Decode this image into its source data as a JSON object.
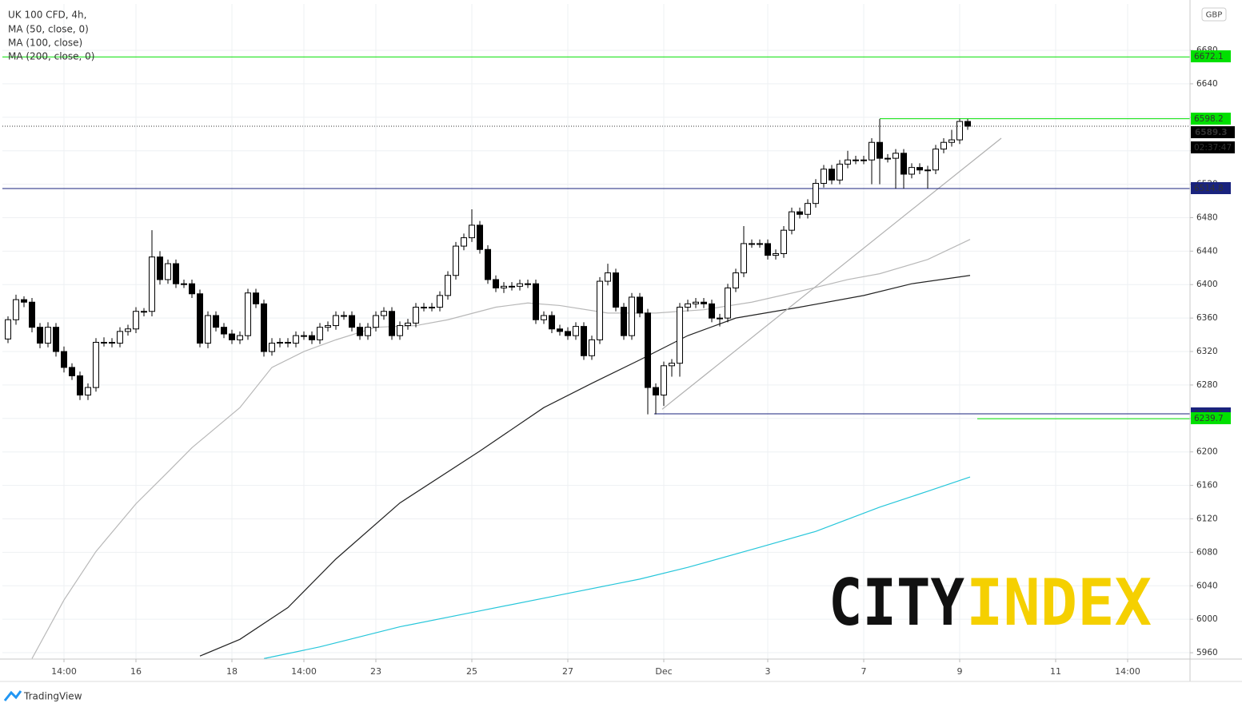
{
  "chart_data": {
    "type": "candlestick",
    "title": "UK 100 CFD, 4h,",
    "currency": "GBP",
    "up_color": "#ffffff",
    "down_color": "#000000",
    "grid": true,
    "xlim": [
      -0.7,
      147.8
    ],
    "ylim": [
      5952.4,
      6735.4
    ],
    "yticks": [
      5960,
      6000,
      6040,
      6080,
      6120,
      6160,
      6200,
      6240,
      6280,
      6320,
      6360,
      6400,
      6440,
      6480,
      6520,
      6560,
      6600,
      6640,
      6680
    ],
    "xticks": [
      {
        "value": 7,
        "label": "14:00"
      },
      {
        "value": 16,
        "label": "16"
      },
      {
        "value": 28,
        "label": "18"
      },
      {
        "value": 37,
        "label": "14:00"
      },
      {
        "value": 46,
        "label": "23"
      },
      {
        "value": 58,
        "label": "25"
      },
      {
        "value": 70,
        "label": "27"
      },
      {
        "value": 82,
        "label": "Dec"
      },
      {
        "value": 95,
        "label": "3"
      },
      {
        "value": 107,
        "label": "7"
      },
      {
        "value": 119,
        "label": "9"
      },
      {
        "value": 131,
        "label": "11"
      },
      {
        "value": 140,
        "label": "14:00"
      }
    ],
    "ohlc": [
      [
        6335,
        6362,
        6330,
        6358
      ],
      [
        6358,
        6388,
        6352,
        6382
      ],
      [
        6382,
        6386,
        6373,
        6379
      ],
      [
        6379,
        6384,
        6343,
        6349
      ],
      [
        6349,
        6354,
        6324,
        6330
      ],
      [
        6330,
        6355,
        6325,
        6349
      ],
      [
        6349,
        6354,
        6314,
        6320
      ],
      [
        6320,
        6326,
        6295,
        6301
      ],
      [
        6301,
        6306,
        6286,
        6291
      ],
      [
        6291,
        6296,
        6262,
        6268
      ],
      [
        6268,
        6282,
        6262,
        6277
      ],
      [
        6277,
        6336,
        6272,
        6331
      ],
      [
        6331,
        6337,
        6326,
        6331
      ],
      [
        6331,
        6336,
        6325,
        6330
      ],
      [
        6330,
        6349,
        6325,
        6344
      ],
      [
        6344,
        6352,
        6339,
        6347
      ],
      [
        6347,
        6373,
        6342,
        6368
      ],
      [
        6368,
        6372,
        6362,
        6368
      ],
      [
        6368,
        6465,
        6362,
        6433
      ],
      [
        6433,
        6440,
        6400,
        6406
      ],
      [
        6406,
        6430,
        6401,
        6425
      ],
      [
        6425,
        6430,
        6396,
        6401
      ],
      [
        6401,
        6406,
        6396,
        6401
      ],
      [
        6401,
        6406,
        6384,
        6389
      ],
      [
        6389,
        6394,
        6325,
        6330
      ],
      [
        6330,
        6368,
        6324,
        6363
      ],
      [
        6363,
        6368,
        6344,
        6349
      ],
      [
        6349,
        6354,
        6336,
        6341
      ],
      [
        6341,
        6346,
        6329,
        6334
      ],
      [
        6334,
        6344,
        6329,
        6339
      ],
      [
        6339,
        6395,
        6334,
        6390
      ],
      [
        6390,
        6395,
        6372,
        6377
      ],
      [
        6377,
        6382,
        6314,
        6320
      ],
      [
        6320,
        6336,
        6315,
        6330
      ],
      [
        6330,
        6336,
        6325,
        6331
      ],
      [
        6331,
        6336,
        6325,
        6330
      ],
      [
        6330,
        6344,
        6325,
        6339
      ],
      [
        6339,
        6344,
        6334,
        6339
      ],
      [
        6339,
        6344,
        6329,
        6334
      ],
      [
        6334,
        6354,
        6329,
        6349
      ],
      [
        6349,
        6356,
        6344,
        6351
      ],
      [
        6351,
        6368,
        6346,
        6363
      ],
      [
        6363,
        6368,
        6358,
        6363
      ],
      [
        6363,
        6368,
        6344,
        6349
      ],
      [
        6349,
        6354,
        6334,
        6339
      ],
      [
        6339,
        6354,
        6334,
        6349
      ],
      [
        6349,
        6368,
        6344,
        6363
      ],
      [
        6363,
        6373,
        6358,
        6368
      ],
      [
        6368,
        6373,
        6334,
        6339
      ],
      [
        6339,
        6356,
        6334,
        6351
      ],
      [
        6351,
        6359,
        6346,
        6354
      ],
      [
        6354,
        6378,
        6349,
        6373
      ],
      [
        6373,
        6378,
        6368,
        6373
      ],
      [
        6373,
        6378,
        6368,
        6373
      ],
      [
        6373,
        6392,
        6368,
        6387
      ],
      [
        6387,
        6416,
        6382,
        6411
      ],
      [
        6411,
        6451,
        6406,
        6446
      ],
      [
        6446,
        6461,
        6441,
        6456
      ],
      [
        6456,
        6490,
        6451,
        6471
      ],
      [
        6471,
        6476,
        6437,
        6442
      ],
      [
        6442,
        6447,
        6401,
        6406
      ],
      [
        6406,
        6411,
        6391,
        6396
      ],
      [
        6396,
        6403,
        6390,
        6398
      ],
      [
        6398,
        6403,
        6393,
        6398
      ],
      [
        6398,
        6406,
        6393,
        6401
      ],
      [
        6401,
        6406,
        6396,
        6401
      ],
      [
        6401,
        6406,
        6353,
        6358
      ],
      [
        6358,
        6368,
        6353,
        6363
      ],
      [
        6363,
        6368,
        6342,
        6347
      ],
      [
        6347,
        6352,
        6339,
        6344
      ],
      [
        6344,
        6349,
        6334,
        6339
      ],
      [
        6339,
        6355,
        6334,
        6350
      ],
      [
        6350,
        6355,
        6310,
        6315
      ],
      [
        6315,
        6339,
        6310,
        6334
      ],
      [
        6334,
        6409,
        6329,
        6404
      ],
      [
        6404,
        6425,
        6399,
        6414
      ],
      [
        6414,
        6419,
        6368,
        6373
      ],
      [
        6373,
        6378,
        6334,
        6339
      ],
      [
        6339,
        6390,
        6334,
        6385
      ],
      [
        6385,
        6390,
        6361,
        6366
      ],
      [
        6366,
        6371,
        6245,
        6277
      ],
      [
        6277,
        6282,
        6245,
        6268
      ],
      [
        6268,
        6308,
        6255,
        6303
      ],
      [
        6303,
        6311,
        6290,
        6306
      ],
      [
        6306,
        6378,
        6290,
        6373
      ],
      [
        6373,
        6382,
        6368,
        6377
      ],
      [
        6377,
        6384,
        6372,
        6379
      ],
      [
        6379,
        6384,
        6372,
        6377
      ],
      [
        6377,
        6382,
        6355,
        6360
      ],
      [
        6360,
        6365,
        6350,
        6360
      ],
      [
        6360,
        6401,
        6355,
        6396
      ],
      [
        6396,
        6419,
        6391,
        6414
      ],
      [
        6414,
        6470,
        6409,
        6449
      ],
      [
        6449,
        6454,
        6444,
        6449
      ],
      [
        6449,
        6454,
        6444,
        6449
      ],
      [
        6449,
        6454,
        6430,
        6435
      ],
      [
        6435,
        6442,
        6430,
        6437
      ],
      [
        6437,
        6470,
        6432,
        6465
      ],
      [
        6465,
        6492,
        6460,
        6487
      ],
      [
        6487,
        6492,
        6479,
        6484
      ],
      [
        6484,
        6502,
        6479,
        6497
      ],
      [
        6497,
        6526,
        6492,
        6521
      ],
      [
        6521,
        6543,
        6516,
        6538
      ],
      [
        6538,
        6543,
        6520,
        6525
      ],
      [
        6525,
        6549,
        6520,
        6544
      ],
      [
        6544,
        6560,
        6539,
        6549
      ],
      [
        6549,
        6554,
        6544,
        6549
      ],
      [
        6549,
        6554,
        6544,
        6549
      ],
      [
        6549,
        6575,
        6520,
        6570
      ],
      [
        6570,
        6598,
        6520,
        6551
      ],
      [
        6551,
        6556,
        6546,
        6551
      ],
      [
        6551,
        6562,
        6515,
        6557
      ],
      [
        6557,
        6562,
        6515,
        6532
      ],
      [
        6532,
        6545,
        6527,
        6540
      ],
      [
        6540,
        6545,
        6532,
        6537
      ],
      [
        6537,
        6542,
        6515,
        6537
      ],
      [
        6537,
        6567,
        6532,
        6562
      ],
      [
        6562,
        6575,
        6557,
        6570
      ],
      [
        6570,
        6585,
        6565,
        6573
      ],
      [
        6573,
        6598.2,
        6568,
        6595
      ],
      [
        6595,
        6598,
        6585,
        6589.3
      ]
    ],
    "series": [
      {
        "name": "MA (50, close, 0)",
        "color": "#b8b8b8",
        "x": [
          3,
          7,
          11,
          16,
          20,
          23,
          29,
          33,
          37,
          41,
          46,
          51,
          55,
          61,
          65,
          69,
          75,
          81,
          87,
          93,
          99,
          105,
          109,
          115,
          120.3
        ],
        "values": [
          5953,
          6023,
          6081,
          6138,
          6176,
          6205,
          6253,
          6301,
          6320,
          6334,
          6349,
          6351,
          6358,
          6373,
          6378,
          6375,
          6366,
          6366,
          6370,
          6379,
          6392,
          6406,
          6413,
          6430,
          6454
        ]
      },
      {
        "name": "MA (100, close)",
        "color": "#222222",
        "x": [
          24,
          29,
          35,
          41,
          49,
          59,
          67,
          73,
          79,
          85,
          91,
          99,
          107,
          113,
          120.3
        ],
        "values": [
          5956,
          5976,
          6014,
          6072,
          6139,
          6201,
          6253,
          6282,
          6310,
          6339,
          6360,
          6373,
          6387,
          6401,
          6411
        ]
      },
      {
        "name": "MA (200, close, 0)",
        "color": "#26c6da",
        "x": [
          32,
          39,
          49,
          59,
          69,
          79,
          85,
          94,
          101,
          109,
          115,
          120.3
        ],
        "values": [
          5953,
          5967,
          5991,
          6010,
          6029,
          6048,
          6062,
          6086,
          6105,
          6134,
          6153,
          6170
        ]
      }
    ],
    "trendline": {
      "x": [
        81.8,
        124.2
      ],
      "values": [
        6251,
        6575
      ],
      "color": "#b0b0b0"
    },
    "levels": [
      {
        "value": 6672.1,
        "from": -0.7,
        "color": "#00e000",
        "label_color": "#00e000"
      },
      {
        "value": 6598.2,
        "from": 109,
        "color": "#00e000",
        "label_color": "#00e000"
      },
      {
        "value": 6514.8,
        "from": -0.7,
        "color": "#1a237e",
        "label_color": "#1a237e"
      },
      {
        "value": 6245.5,
        "from": 80.8,
        "color": "#1a237e",
        "label_color": "#1a237e"
      },
      {
        "value": 6239.7,
        "from": 121.2,
        "color": "#00e000",
        "label_color": "#00e000"
      }
    ],
    "last_price": 6589.3,
    "countdown": "02:37:47"
  },
  "brand": {
    "logo_left": "CITY",
    "logo_right": "INDEX",
    "footer": "TradingView"
  }
}
